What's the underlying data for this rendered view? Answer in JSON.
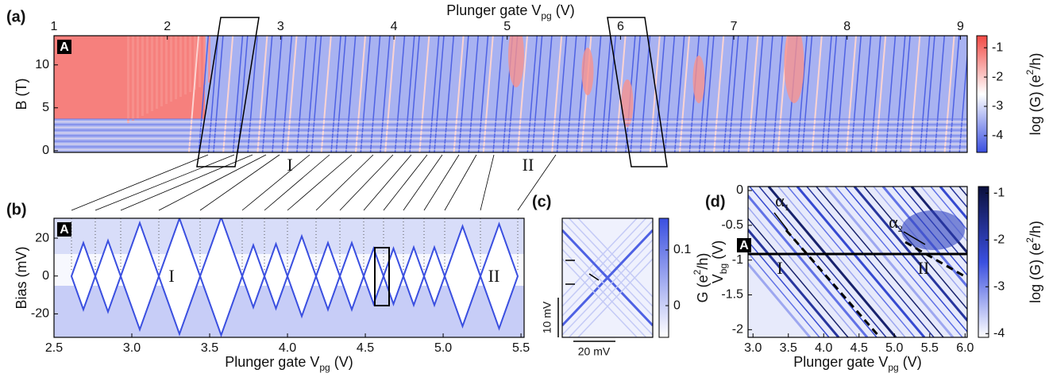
{
  "chart_data": [
    {
      "type": "heatmap",
      "panel_label": "(a)",
      "inset_label": "A",
      "xlabel": [
        "Plunger gate V",
        "pg",
        " (V)"
      ],
      "ylabel": "B (T)",
      "xaxis_position": "top",
      "xlim": [
        1,
        9.06
      ],
      "xticks": [
        1,
        2,
        3,
        4,
        5,
        6,
        7,
        8,
        9
      ],
      "ylim": [
        -0.2,
        13.4
      ],
      "yticks": [
        0,
        5,
        10
      ],
      "colorbar": {
        "label": [
          "log (G) (e",
          "2",
          "/h)"
        ],
        "lim": [
          -4.57,
          -0.59
        ],
        "ticks": [
          -4,
          -3,
          -2,
          -1
        ],
        "colormap": [
          "#3a4fe0",
          "#ffffff",
          "#f24a45"
        ]
      },
      "annotations": [
        "I",
        "II"
      ]
    },
    {
      "type": "heatmap",
      "panel_label": "(b)",
      "inset_label": "A",
      "xlabel": [
        "Plunger gate V",
        "pg",
        " (V)"
      ],
      "ylabel": "Bias (mV)",
      "xaxis_position": "bottom",
      "xlim": [
        2.5,
        5.52
      ],
      "xticks": [
        2.5,
        {
          "value": 3,
          "label": "3.0"
        },
        3.5,
        {
          "value": 4,
          "label": "4.0"
        },
        4.5,
        {
          "value": 5,
          "label": "5.0"
        },
        5.5
      ],
      "ylim": [
        -32.4,
        30.5
      ],
      "yticks": [
        -20,
        0,
        20
      ],
      "colorbar": {
        "colormap": [
          "#ffffff",
          "#3a4fe0"
        ]
      },
      "annotations": [
        "I",
        "II"
      ]
    },
    {
      "type": "heatmap",
      "panel_label": "(c)",
      "scale_bars": [
        "10 mV",
        "20 mV"
      ],
      "colorbar": {
        "label": [
          "G (e",
          "2",
          "/h)"
        ],
        "lim": [
          -0.057,
          0.157
        ],
        "ticks": [
          0,
          0.1
        ],
        "colormap": [
          "#ffffff",
          "#3a4fe0"
        ]
      }
    },
    {
      "type": "heatmap",
      "panel_label": "(d)",
      "inset_label": "A",
      "xlabel": [
        "Plunger gate V",
        "pg",
        " (V)"
      ],
      "ylabel": [
        "V",
        "bg",
        " (V)"
      ],
      "xaxis_position": "bottom",
      "xlim": [
        2.93,
        6.03
      ],
      "xticks": [
        {
          "value": 3,
          "label": "3.0"
        },
        3.5,
        {
          "value": 4,
          "label": "4.0"
        },
        4.5,
        {
          "value": 5,
          "label": "5.0"
        },
        5.5,
        {
          "value": 6,
          "label": "6.0"
        }
      ],
      "ylim": [
        -2.11,
        0.057
      ],
      "yticks": [
        -2,
        -1.5,
        -1,
        -0.5,
        0
      ],
      "colorbar": {
        "label": [
          "log (G) (e",
          "2",
          "/h)"
        ],
        "lim": [
          -4.08,
          -0.86
        ],
        "ticks": [
          -4,
          -3,
          -2,
          -1
        ],
        "colormap": [
          "#ffffff",
          "#3a4fe0",
          "#0a0f3c"
        ]
      },
      "annotations": [
        "I",
        "II"
      ],
      "slopes": [
        [
          "α",
          "1"
        ],
        [
          "α",
          "2"
        ]
      ]
    }
  ]
}
